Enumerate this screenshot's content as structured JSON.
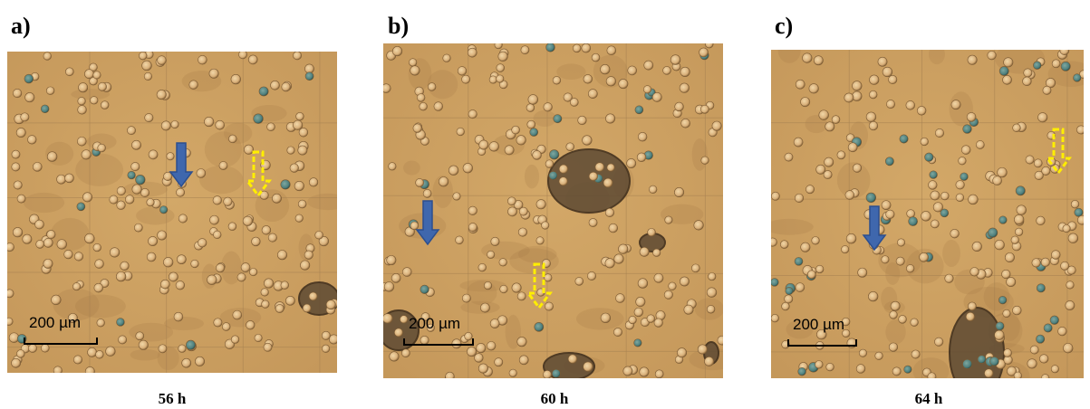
{
  "panels": [
    {
      "label": "a)",
      "scale_bar": "200 µm",
      "caption": "56 h"
    },
    {
      "label": "b)",
      "scale_bar": "200 µm",
      "caption": "60 h"
    },
    {
      "label": "c)",
      "scale_bar": "200 µm",
      "caption": "64 h"
    }
  ]
}
